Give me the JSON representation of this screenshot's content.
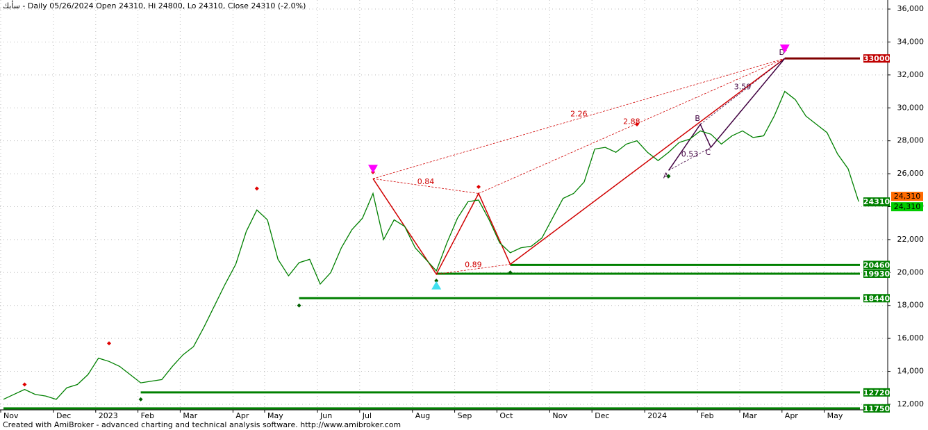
{
  "chart_data": {
    "type": "line",
    "title": "سأبك - Daily 05/26/2024 Open 24310, Hi 24800, Lo 24310, Close 24310 (-2.0%)",
    "footer": "Created with AmiBroker - advanced charting and technical analysis software. http://www.amibroker.com",
    "categories": [
      "Nov",
      null,
      null,
      null,
      null,
      "Dec",
      null,
      null,
      null,
      "2023",
      null,
      null,
      null,
      "Feb",
      null,
      null,
      null,
      "Mar",
      null,
      null,
      null,
      null,
      "Apr",
      null,
      null,
      "May",
      null,
      null,
      null,
      null,
      "Jun",
      null,
      null,
      null,
      "Jul",
      null,
      null,
      null,
      null,
      "Aug",
      null,
      null,
      null,
      "Sep",
      null,
      null,
      null,
      "Oct",
      null,
      null,
      null,
      null,
      "Nov",
      null,
      null,
      null,
      "Dec",
      null,
      null,
      null,
      null,
      "2024",
      null,
      null,
      null,
      null,
      "Feb",
      null,
      null,
      null,
      "Mar",
      null,
      null,
      null,
      "Apr",
      null,
      null,
      null,
      "May",
      null,
      null,
      null
    ],
    "series": [
      {
        "name": "Close",
        "color": "#008000",
        "values": [
          12300,
          12600,
          12900,
          12600,
          12500,
          12300,
          13000,
          13200,
          13800,
          14800,
          14600,
          14300,
          13800,
          13300,
          13400,
          13500,
          14300,
          15000,
          15500,
          16700,
          18000,
          19300,
          20500,
          22500,
          23800,
          23200,
          20800,
          19800,
          20600,
          20800,
          19300,
          20000,
          21500,
          22600,
          23300,
          24800,
          22000,
          23200,
          22800,
          21500,
          20800,
          20100,
          21800,
          23300,
          24300,
          24400,
          23200,
          21800,
          21200,
          21500,
          21600,
          22100,
          23300,
          24500,
          24800,
          25500,
          27500,
          27600,
          27300,
          27800,
          28000,
          27300,
          26800,
          27300,
          27900,
          28100,
          28600,
          28400,
          27800,
          28300,
          28600,
          28200,
          28300,
          29500,
          31000,
          30500,
          29500,
          29000,
          28500,
          27200,
          26300,
          24310
        ]
      }
    ],
    "ylim": [
      11660,
      36550
    ],
    "yticks": [
      {
        "value": 12000,
        "label": "12,000"
      },
      {
        "value": 14000,
        "label": "14,000"
      },
      {
        "value": 16000,
        "label": "16,000"
      },
      {
        "value": 18000,
        "label": "18,000"
      },
      {
        "value": 20000,
        "label": "20,000"
      },
      {
        "value": 22000,
        "label": "22,000"
      },
      {
        "value": 24000,
        "label": "24,000"
      },
      {
        "value": 26000,
        "label": "26,000"
      },
      {
        "value": 28000,
        "label": "28,000"
      },
      {
        "value": 30000,
        "label": "30,000"
      },
      {
        "value": 32000,
        "label": "32,000"
      },
      {
        "value": 34000,
        "label": "34,000"
      },
      {
        "value": 36000,
        "label": "36,000"
      }
    ],
    "grid": true,
    "levels": [
      {
        "price": 33000,
        "color": "#800000",
        "box": "#c00000",
        "from_bar": 74
      },
      {
        "price": 20460,
        "color": "#008000",
        "box": "#008000",
        "from_bar": 48
      },
      {
        "price": 19930,
        "color": "#008000",
        "box": "#008000",
        "from_bar": 41
      },
      {
        "price": 18440,
        "color": "#008000",
        "box": "#008000",
        "from_bar": 28
      },
      {
        "price": 12720,
        "color": "#008000",
        "box": "#008000",
        "from_bar": 13
      },
      {
        "price": 11750,
        "color": "#008000",
        "box": "#008000",
        "from_bar": 0
      }
    ],
    "last_price": [
      {
        "value": 24310,
        "label": "24,310",
        "color": "#ff6a00"
      },
      {
        "value": 24310,
        "label": "24310",
        "color": "#008000"
      },
      {
        "value": 24310,
        "label": "24,310",
        "color": "#00cc00"
      }
    ],
    "patterns": [
      {
        "color": "#d00000",
        "points": [
          {
            "bar": 35,
            "price": 25700
          },
          {
            "bar": 41,
            "price": 19900
          },
          {
            "bar": 45,
            "price": 24800
          },
          {
            "bar": 48,
            "price": 20500
          },
          {
            "bar": 74,
            "price": 33000
          }
        ],
        "ratios": [
          {
            "value": 0.84,
            "between": [
              0,
              2
            ]
          },
          {
            "value": 0.89,
            "between": [
              1,
              3
            ]
          },
          {
            "value": 2.26,
            "between": [
              0,
              4
            ]
          },
          {
            "value": 2.88,
            "between": [
              2,
              4
            ]
          }
        ]
      },
      {
        "color": "#400040",
        "letters": [
          "A",
          "B",
          "C",
          "D"
        ],
        "points": [
          {
            "bar": 63,
            "price": 26200
          },
          {
            "bar": 66,
            "price": 29000
          },
          {
            "bar": 67,
            "price": 27600
          },
          {
            "bar": 74,
            "price": 33000
          }
        ],
        "ratios": [
          {
            "value": 0.53,
            "between": [
              0,
              2
            ]
          },
          {
            "value": 3.59,
            "between": [
              1,
              3
            ]
          }
        ]
      }
    ],
    "pivot_highs": [
      {
        "bar": 2,
        "price": 13200
      },
      {
        "bar": 10,
        "price": 15700
      },
      {
        "bar": 24,
        "price": 25100
      },
      {
        "bar": 35,
        "price": 26100
      },
      {
        "bar": 45,
        "price": 25200
      },
      {
        "bar": 60,
        "price": 29000
      },
      {
        "bar": 74,
        "price": 33500
      }
    ],
    "pivot_lows": [
      {
        "bar": 13,
        "price": 12300
      },
      {
        "bar": 28,
        "price": 18000
      },
      {
        "bar": 41,
        "price": 19500
      },
      {
        "bar": 48,
        "price": 20000
      },
      {
        "bar": 63,
        "price": 25850
      }
    ]
  }
}
